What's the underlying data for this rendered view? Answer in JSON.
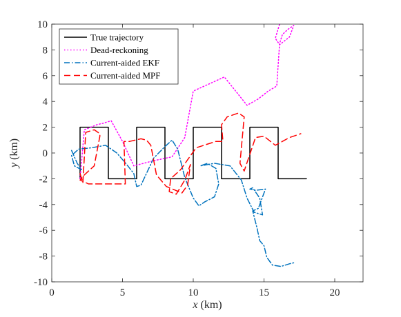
{
  "chart_data": {
    "type": "line",
    "title": "",
    "xlabel": "x (km)",
    "ylabel": "y (km)",
    "xlim": [
      0,
      22
    ],
    "ylim": [
      -10,
      10
    ],
    "x_ticks": [
      0,
      5,
      10,
      15,
      20
    ],
    "y_ticks": [
      -10,
      -8,
      -6,
      -4,
      -2,
      0,
      2,
      4,
      6,
      8,
      10
    ],
    "x_tick_labels": [
      "0",
      "5",
      "10",
      "15",
      "20"
    ],
    "y_tick_labels": [
      "-10",
      "-8",
      "-6",
      "-4",
      "-2",
      "0",
      "2",
      "4",
      "6",
      "8",
      "10"
    ],
    "grid": false,
    "legend": "top-left",
    "series": [
      {
        "name": "True trajectory",
        "color": "#000000",
        "dash": "solid",
        "x": [
          2,
          2,
          2,
          4,
          4,
          6,
          6,
          6,
          8,
          8,
          10,
          10,
          12,
          12,
          14,
          14,
          16,
          16,
          18
        ],
        "y": [
          -2,
          0,
          2,
          2,
          -2,
          -2,
          0,
          2,
          2,
          -2,
          -2,
          2,
          2,
          -2,
          -2,
          2,
          2,
          -2,
          -2
        ]
      },
      {
        "name": "Dead-reckoning",
        "color": "#ff00ff",
        "dash": "dotted",
        "x": [
          2,
          2.3,
          3.2,
          3.6,
          4.2,
          5.0,
          5.8,
          7.2,
          8.5,
          9.4,
          10.0,
          11.0,
          12.2,
          13.0,
          13.8,
          14.6,
          15.3,
          15.9,
          16.1,
          16.3,
          16.7,
          17.1,
          16.8,
          16.1,
          15.8,
          16.1
        ],
        "y": [
          -2,
          1.8,
          2.2,
          2.3,
          2.5,
          0.9,
          -1.0,
          -0.6,
          -0.3,
          1.2,
          4.8,
          5.3,
          5.9,
          4.8,
          3.7,
          4.2,
          4.8,
          5.2,
          8.5,
          9.2,
          9.6,
          9.9,
          9.0,
          8.4,
          8.9,
          10.0
        ]
      },
      {
        "name": "Current-aided EKF",
        "color": "#0072bd",
        "dash": "dashdot",
        "x": [
          1.4,
          1.8,
          2.1,
          1.6,
          1.4,
          1.9,
          2.8,
          3.8,
          4.6,
          5.3,
          5.8,
          6.0,
          6.3,
          7.2,
          8.0,
          8.5,
          8.9,
          9.4,
          10.0,
          10.4,
          10.8,
          11.5,
          11.8,
          11.6,
          11.0,
          10.5,
          11.5,
          12.6,
          13.4,
          13.8,
          14.3,
          14.9,
          14.7,
          14.2,
          14.0,
          14.4,
          15.1,
          14.6,
          14.2,
          14.5,
          14.7,
          15.0,
          15.2,
          15.6,
          16.2,
          16.8,
          17.2
        ],
        "y": [
          0.2,
          -0.8,
          -1.3,
          -1.0,
          -0.2,
          0.3,
          0.4,
          0.6,
          0.0,
          -0.9,
          -1.6,
          -2.6,
          -2.5,
          -0.4,
          0.5,
          1.0,
          0.3,
          -1.9,
          -3.5,
          -4.1,
          -3.8,
          -3.4,
          -2.4,
          -1.2,
          -0.8,
          -1.0,
          -0.8,
          -1.0,
          -2.1,
          -3.5,
          -4.6,
          -4.8,
          -3.5,
          -2.7,
          -2.8,
          -2.9,
          -2.8,
          -4.3,
          -4.5,
          -5.8,
          -6.8,
          -7.2,
          -8.1,
          -8.7,
          -8.8,
          -8.6,
          -8.5
        ]
      },
      {
        "name": "Current-aided MPF",
        "color": "#ff0000",
        "dash": "dashed",
        "x": [
          2.0,
          2.2,
          2.4,
          3.0,
          3.4,
          3.4,
          3.0,
          2.3,
          2.0,
          2.6,
          5.2,
          5.1,
          5.5,
          6.3,
          6.7,
          7.0,
          7.4,
          8.1,
          9.2,
          9.6,
          9.8,
          9.4,
          8.8,
          8.3,
          8.4,
          9.1,
          10.2,
          11.6,
          12.1,
          12.0,
          12.4,
          13.2,
          13.6,
          13.3,
          13.6,
          14.0,
          14.4,
          15.0,
          15.8,
          16.8,
          17.6
        ],
        "y": [
          -1.6,
          -2.3,
          1.6,
          1.8,
          1.5,
          1.3,
          -1.0,
          -1.7,
          -2.1,
          -2.4,
          -2.4,
          0.9,
          0.9,
          1.1,
          1.0,
          0.6,
          -1.7,
          -2.6,
          -3.1,
          -2.5,
          -0.9,
          -2.1,
          -3.2,
          -3.0,
          -2.0,
          -1.3,
          0.4,
          0.9,
          0.9,
          2.2,
          2.8,
          3.1,
          2.8,
          -0.8,
          -1.4,
          -0.1,
          1.2,
          1.3,
          0.6,
          1.2,
          1.5
        ]
      }
    ]
  }
}
